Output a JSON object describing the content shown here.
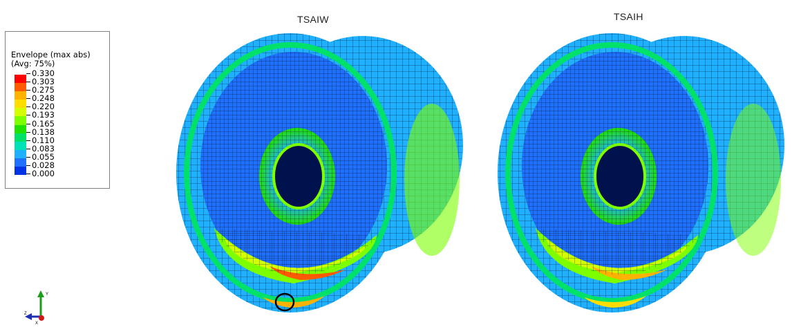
{
  "legend": {
    "title_line1": "Envelope (max abs)",
    "title_line2": "(Avg: 75%)",
    "values": [
      "0.330",
      "0.303",
      "0.275",
      "0.248",
      "0.220",
      "0.193",
      "0.165",
      "0.138",
      "0.110",
      "0.083",
      "0.055",
      "0.028",
      "0.000"
    ],
    "colors": [
      "#ff0000",
      "#ff5a00",
      "#ffb200",
      "#ffdd00",
      "#d4ff00",
      "#7dff00",
      "#21e100",
      "#00e16a",
      "#00e1b8",
      "#1fb0ff",
      "#1f70ff",
      "#0033e6"
    ]
  },
  "views": [
    {
      "title": "TSAIW"
    },
    {
      "title": "TSAIH"
    }
  ],
  "triad": {
    "y_label": "Y",
    "z_label": "Z",
    "x_label": "X"
  }
}
